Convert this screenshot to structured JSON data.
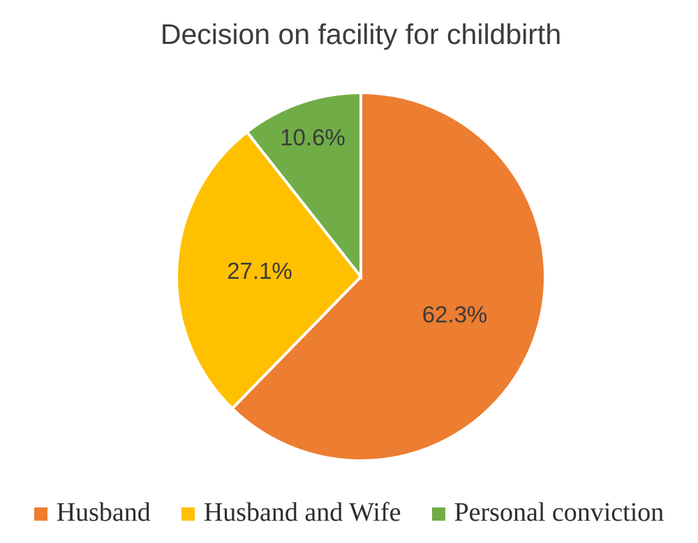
{
  "chart_data": {
    "type": "pie",
    "title": "Decision on facility for childbirth",
    "slices": [
      {
        "name": "Husband",
        "value": 62.3,
        "label": "62.3%",
        "color": "#ED7D31",
        "label_radius_frac": 0.55
      },
      {
        "name": "Husband and Wife",
        "value": 27.1,
        "label": "27.1%",
        "color": "#FFC000",
        "label_radius_frac": 0.55
      },
      {
        "name": "Personal conviction",
        "value": 10.6,
        "label": "10.6%",
        "color": "#70AD47",
        "label_radius_frac": 0.8
      }
    ],
    "start_angle_deg": 0,
    "direction": "clockwise",
    "legend_position": "bottom",
    "grid": false,
    "slice_border_color": "#FFFFFF",
    "slice_border_width": 4,
    "label_color": "#3A3A3A",
    "title_color": "#3C3C3C",
    "background_color": "#FFFFFF"
  }
}
